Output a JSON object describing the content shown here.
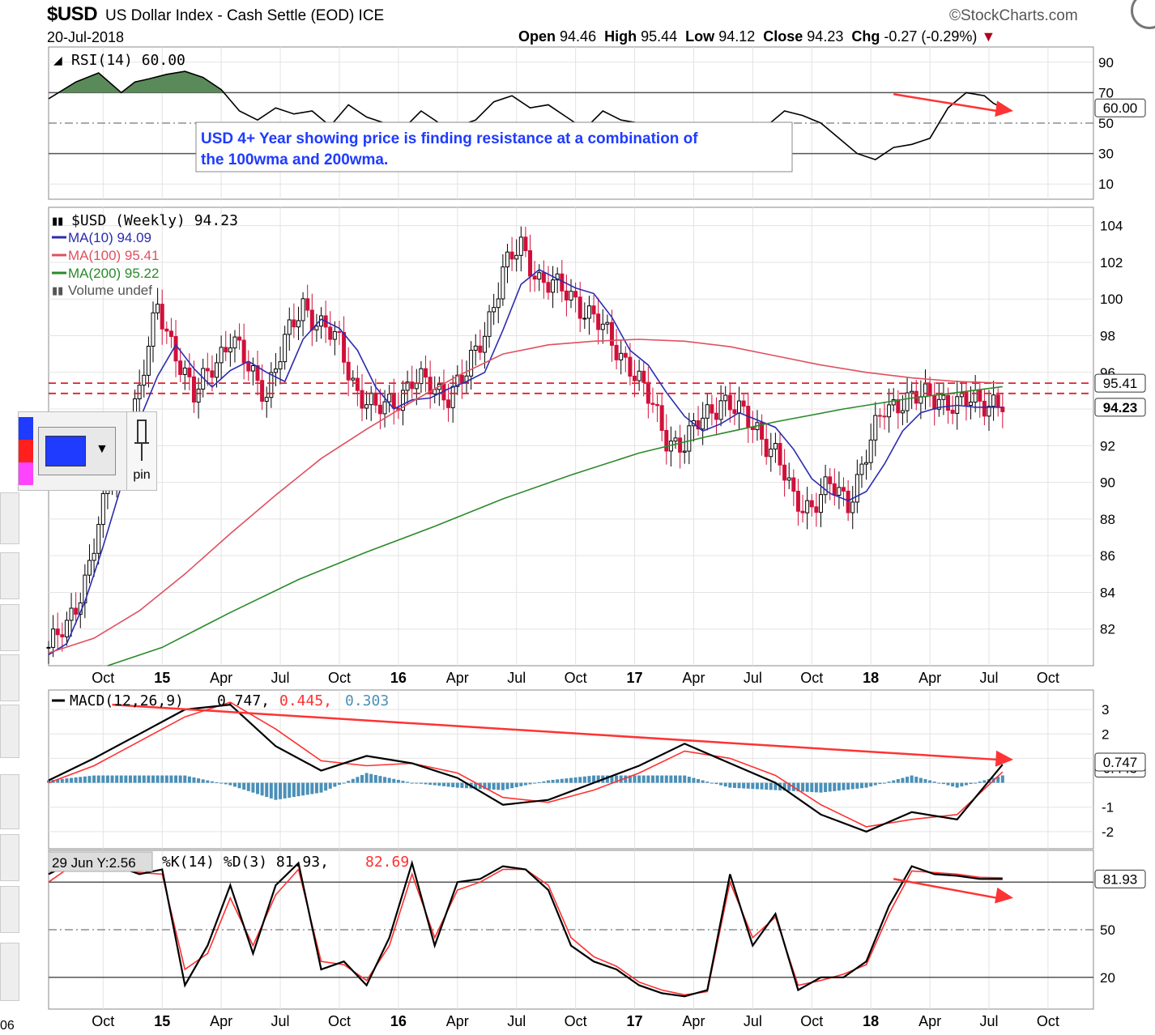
{
  "header": {
    "symbol": "$USD",
    "name": "US Dollar Index - Cash Settle (EOD)",
    "exchange": "ICE",
    "date": "20-Jul-2018",
    "brand": "StockCharts.com",
    "open_label": "Open",
    "open": "94.46",
    "high_label": "High",
    "high": "95.44",
    "low_label": "Low",
    "low": "94.12",
    "close_label": "Close",
    "close": "94.23",
    "chg_label": "Chg",
    "chg": "-0.27 (-0.29%)"
  },
  "annotation": {
    "line1": "USD 4+ Year showing price is finding resistance at a combination of",
    "line2": "the 100wma and 200wma."
  },
  "widget": {
    "pin_label": "pin",
    "bottom_number": "06",
    "swatches": [
      "#1f3bff",
      "#ff1f1f",
      "#ff44ff"
    ]
  },
  "x_labels": [
    "Oct",
    "15",
    "Apr",
    "Jul",
    "Oct",
    "16",
    "Apr",
    "Jul",
    "Oct",
    "17",
    "Apr",
    "Jul",
    "Oct",
    "18",
    "Apr",
    "Jul",
    "Oct"
  ],
  "chart_data": [
    {
      "panel": "rsi",
      "type": "area",
      "title": "RSI(14) 60.00",
      "ylim": [
        0,
        100
      ],
      "y_ticks": [
        "90",
        "70",
        "50",
        "30",
        "10"
      ],
      "ref_lines": [
        70,
        50,
        30
      ],
      "last_value_label": "60.00",
      "t": [
        0,
        6,
        11,
        16,
        19,
        22,
        26,
        30,
        34,
        38,
        42,
        46,
        50,
        54,
        58,
        62,
        66,
        70,
        74,
        78,
        82,
        86,
        90,
        94,
        98,
        102,
        106,
        110,
        114,
        118,
        122,
        126,
        130,
        134,
        138,
        142,
        146,
        150,
        154,
        158,
        162,
        166,
        170,
        174,
        178,
        182,
        186,
        190,
        194,
        198,
        202,
        206,
        208,
        210
      ],
      "values": [
        66,
        77,
        83,
        70,
        77,
        79,
        82,
        84,
        80,
        72,
        58,
        52,
        60,
        56,
        58,
        48,
        62,
        54,
        50,
        46,
        58,
        50,
        48,
        52,
        64,
        68,
        60,
        62,
        54,
        46,
        58,
        52,
        50,
        42,
        30,
        27,
        35,
        28,
        35,
        48,
        58,
        55,
        50,
        40,
        30,
        26,
        34,
        36,
        40,
        60,
        70,
        68,
        63,
        60
      ],
      "color": "#000000",
      "fill_above_70": "#5a8a5a",
      "arrow": {
        "from": [
          186,
          69
        ],
        "to": [
          212,
          58
        ],
        "color": "#ff3333"
      }
    },
    {
      "panel": "price",
      "type": "candlestick",
      "title": "$USD (Weekly) 94.23",
      "ylim": [
        80,
        105
      ],
      "y_ticks": [
        "104",
        "102",
        "100",
        "98",
        "96",
        "92",
        "90",
        "88",
        "86",
        "84",
        "82"
      ],
      "series": [
        {
          "name": "MA(10) 94.09",
          "color": "#2b2bb0",
          "t": [
            0,
            4,
            8,
            12,
            16,
            20,
            24,
            28,
            32,
            36,
            40,
            44,
            48,
            52,
            56,
            60,
            64,
            68,
            72,
            76,
            80,
            84,
            88,
            92,
            96,
            100,
            104,
            108,
            112,
            116,
            120,
            124,
            128,
            132,
            136,
            140,
            144,
            148,
            152,
            156,
            160,
            164,
            168,
            172,
            176,
            180,
            184,
            188,
            192,
            196,
            200,
            204,
            208,
            210
          ],
          "values": [
            80.6,
            81.2,
            83.5,
            86.5,
            89.8,
            93.4,
            95.8,
            97.5,
            96.2,
            95.2,
            96.1,
            96.6,
            96.0,
            95.5,
            97.8,
            98.9,
            98.4,
            97.2,
            95.2,
            94.0,
            94.5,
            94.6,
            95.1,
            95.5,
            96.0,
            98.3,
            100.8,
            101.6,
            101.1,
            100.6,
            100.3,
            99.0,
            97.2,
            96.4,
            94.9,
            93.6,
            92.8,
            93.2,
            93.8,
            93.4,
            93.0,
            91.8,
            90.2,
            89.4,
            89.0,
            89.5,
            91.0,
            92.8,
            93.8,
            94.09,
            94.2,
            94.1,
            94.1,
            94.09
          ]
        },
        {
          "name": "MA(100) 95.41",
          "color": "#e05060",
          "t": [
            0,
            10,
            20,
            30,
            40,
            50,
            60,
            70,
            80,
            90,
            100,
            110,
            120,
            130,
            140,
            150,
            160,
            170,
            180,
            190,
            200,
            210
          ],
          "values": [
            80.7,
            81.5,
            83.0,
            85.0,
            87.2,
            89.3,
            91.3,
            92.9,
            94.4,
            95.8,
            97.0,
            97.5,
            97.7,
            97.8,
            97.7,
            97.4,
            96.9,
            96.4,
            96.0,
            95.7,
            95.5,
            95.41
          ]
        },
        {
          "name": "MA(200) 95.22",
          "color": "#2a8a2a",
          "t": [
            13,
            25,
            40,
            55,
            70,
            85,
            100,
            115,
            130,
            145,
            160,
            175,
            190,
            200,
            210
          ],
          "values": [
            80.0,
            81.0,
            82.9,
            84.7,
            86.2,
            87.6,
            89.1,
            90.4,
            91.6,
            92.5,
            93.3,
            94.0,
            94.6,
            94.9,
            95.22
          ]
        }
      ],
      "volume_label": "Volume undef",
      "resistance_lines": [
        95.41,
        94.85
      ],
      "last_value_labels": [
        "95.41",
        "94.23"
      ],
      "close_anchors": {
        "t": [
          0,
          4,
          8,
          12,
          16,
          20,
          24,
          28,
          32,
          36,
          40,
          44,
          48,
          52,
          56,
          60,
          64,
          68,
          72,
          76,
          80,
          84,
          88,
          92,
          96,
          100,
          104,
          108,
          112,
          116,
          120,
          124,
          128,
          132,
          136,
          140,
          144,
          148,
          152,
          156,
          160,
          164,
          168,
          172,
          176,
          180,
          184,
          188,
          192,
          196,
          200,
          204,
          208,
          210
        ],
        "values": [
          81.0,
          82.0,
          84.8,
          88.5,
          92.3,
          95.0,
          99.5,
          97.2,
          94.5,
          96.5,
          97.8,
          96.2,
          95.0,
          97.5,
          99.8,
          98.5,
          97.5,
          95.0,
          93.8,
          94.5,
          95.5,
          95.2,
          94.9,
          95.8,
          98.3,
          101.5,
          102.8,
          101.2,
          100.5,
          100.0,
          99.0,
          97.5,
          96.5,
          94.5,
          92.5,
          92.0,
          93.5,
          94.6,
          93.7,
          93.0,
          91.5,
          89.0,
          88.8,
          89.7,
          89.0,
          91.5,
          94.0,
          94.6,
          94.5,
          94.7,
          94.2,
          94.4,
          94.5,
          94.23
        ]
      }
    },
    {
      "panel": "macd",
      "type": "line",
      "title_parts": [
        "MACD(12,26,9)",
        "0.747,",
        "0.445,",
        "0.303"
      ],
      "ylim": [
        -2.7,
        3.8
      ],
      "y_ticks": [
        "3",
        "2",
        "-1",
        "-2"
      ],
      "last_value_labels": [
        "0.747",
        "0.445"
      ],
      "t": [
        0,
        10,
        20,
        30,
        40,
        50,
        60,
        70,
        80,
        90,
        100,
        110,
        120,
        130,
        140,
        150,
        160,
        170,
        180,
        190,
        200,
        210
      ],
      "series": [
        {
          "name": "MACD",
          "color": "#000000",
          "values": [
            0.1,
            1.0,
            2.0,
            3.0,
            3.2,
            1.5,
            0.5,
            1.1,
            0.8,
            0.2,
            -0.9,
            -0.7,
            0.0,
            0.7,
            1.6,
            0.8,
            0.0,
            -1.3,
            -2.0,
            -1.2,
            -1.5,
            0.747
          ]
        },
        {
          "name": "Signal",
          "color": "#ff3030",
          "values": [
            0.0,
            0.7,
            1.7,
            2.7,
            3.3,
            2.2,
            0.9,
            0.7,
            0.8,
            0.4,
            -0.6,
            -0.8,
            -0.3,
            0.4,
            1.3,
            1.0,
            0.3,
            -0.9,
            -1.8,
            -1.5,
            -1.3,
            0.445
          ]
        },
        {
          "name": "Histogram",
          "color": "#4a90b8",
          "values": [
            0.1,
            0.3,
            0.3,
            0.3,
            -0.1,
            -0.7,
            -0.4,
            0.4,
            0.0,
            -0.2,
            -0.3,
            0.1,
            0.3,
            0.3,
            0.3,
            -0.2,
            -0.3,
            -0.4,
            -0.2,
            0.3,
            -0.2,
            0.303
          ]
        }
      ],
      "arrow": {
        "from": [
          14,
          3.2
        ],
        "to": [
          212,
          0.95
        ],
        "color": "#ff3333"
      }
    },
    {
      "panel": "stoch",
      "type": "line",
      "title_parts": [
        "%K(14) %D(3) 81.93,",
        "82.69"
      ],
      "tooltip": "29 Jun Y:2.56",
      "ylim": [
        0,
        100
      ],
      "y_ticks": [
        "50",
        "20"
      ],
      "ref_lines": [
        80,
        50,
        20
      ],
      "last_value_label": "81.93",
      "t": [
        0,
        5,
        10,
        15,
        20,
        25,
        30,
        35,
        40,
        45,
        50,
        55,
        60,
        65,
        70,
        75,
        80,
        85,
        90,
        95,
        100,
        105,
        110,
        115,
        120,
        125,
        130,
        135,
        140,
        145,
        150,
        155,
        160,
        165,
        170,
        175,
        180,
        185,
        190,
        195,
        200,
        205,
        210
      ],
      "series": [
        {
          "name": "%K",
          "color": "#000000",
          "values": [
            85,
            92,
            88,
            90,
            85,
            88,
            15,
            40,
            78,
            35,
            78,
            92,
            25,
            30,
            15,
            45,
            92,
            40,
            80,
            82,
            90,
            88,
            75,
            40,
            30,
            25,
            15,
            10,
            8,
            12,
            85,
            40,
            60,
            12,
            20,
            20,
            30,
            65,
            90,
            85,
            84,
            82,
            81.93
          ]
        },
        {
          "name": "%D",
          "color": "#ff3030",
          "values": [
            80,
            90,
            88,
            88,
            86,
            85,
            25,
            35,
            70,
            40,
            72,
            88,
            30,
            28,
            18,
            40,
            85,
            45,
            75,
            80,
            88,
            88,
            78,
            45,
            33,
            27,
            17,
            12,
            9,
            11,
            80,
            45,
            58,
            15,
            18,
            22,
            28,
            60,
            87,
            86,
            85,
            83,
            82.69
          ]
        }
      ],
      "arrow": {
        "from": [
          186,
          82
        ],
        "to": [
          212,
          70
        ],
        "color": "#ff3333"
      }
    }
  ]
}
